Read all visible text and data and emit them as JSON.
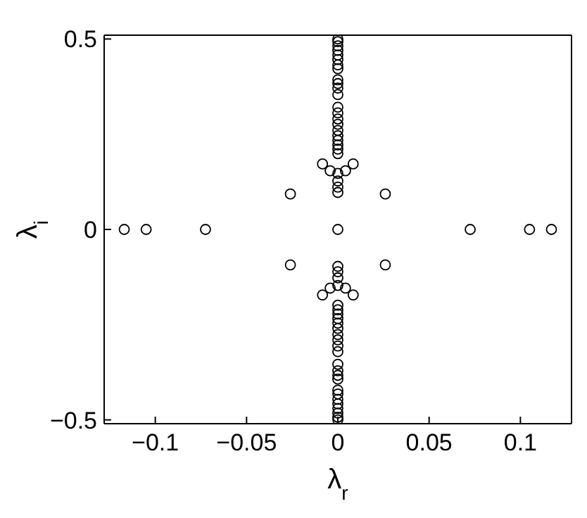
{
  "chart_data": {
    "type": "scatter",
    "xlabel": "λ$_{r}$",
    "ylabel": "λ$_{i}$",
    "xlim": [
      -0.128,
      0.128
    ],
    "xticks": [
      -0.1,
      -0.05,
      0,
      0.05,
      0.1
    ],
    "ylim": [
      -0.51,
      0.51
    ],
    "yticks": [
      -0.5,
      0,
      0.5
    ],
    "grid": false,
    "legend": false,
    "marker": "circle",
    "series": [
      {
        "color": "#000000",
        "x": [
          -0.117,
          -0.105,
          -0.0725,
          0,
          0.0725,
          0.105,
          0.117,
          -0.026,
          0.026,
          -0.026,
          0.026,
          -0.0084,
          -0.0042,
          0.0042,
          0.0084,
          -0.0084,
          -0.0042,
          0.0042,
          0.0084,
          0,
          0,
          0,
          0,
          0,
          0,
          0,
          0,
          0,
          0,
          0,
          0,
          0,
          0,
          0,
          0,
          0,
          0,
          0,
          0,
          0,
          0,
          0,
          0,
          0,
          0,
          0,
          0,
          0,
          0,
          0,
          0,
          0,
          0,
          0,
          0,
          0,
          0,
          0,
          0,
          0,
          0,
          0,
          0,
          0,
          0,
          0,
          0,
          0,
          0,
          0,
          0
        ],
        "values": [
          0,
          0,
          0,
          0,
          0,
          0,
          0,
          0.093,
          0.093,
          -0.093,
          -0.093,
          0.172,
          0.154,
          0.154,
          0.172,
          -0.172,
          -0.154,
          -0.154,
          -0.172,
          0.097,
          0.111,
          0.127,
          0.147,
          0.199,
          0.211,
          0.222,
          0.234,
          0.246,
          0.26,
          0.276,
          0.29,
          0.306,
          0.321,
          0.354,
          0.371,
          0.383,
          0.393,
          0.422,
          0.432,
          0.446,
          0.458,
          0.47,
          0.482,
          0.493,
          0.5,
          -0.097,
          -0.111,
          -0.127,
          -0.147,
          -0.199,
          -0.211,
          -0.222,
          -0.234,
          -0.246,
          -0.26,
          -0.276,
          -0.29,
          -0.306,
          -0.321,
          -0.354,
          -0.371,
          -0.383,
          -0.393,
          -0.422,
          -0.432,
          -0.446,
          -0.458,
          -0.47,
          -0.482,
          -0.493,
          -0.5
        ]
      }
    ]
  }
}
